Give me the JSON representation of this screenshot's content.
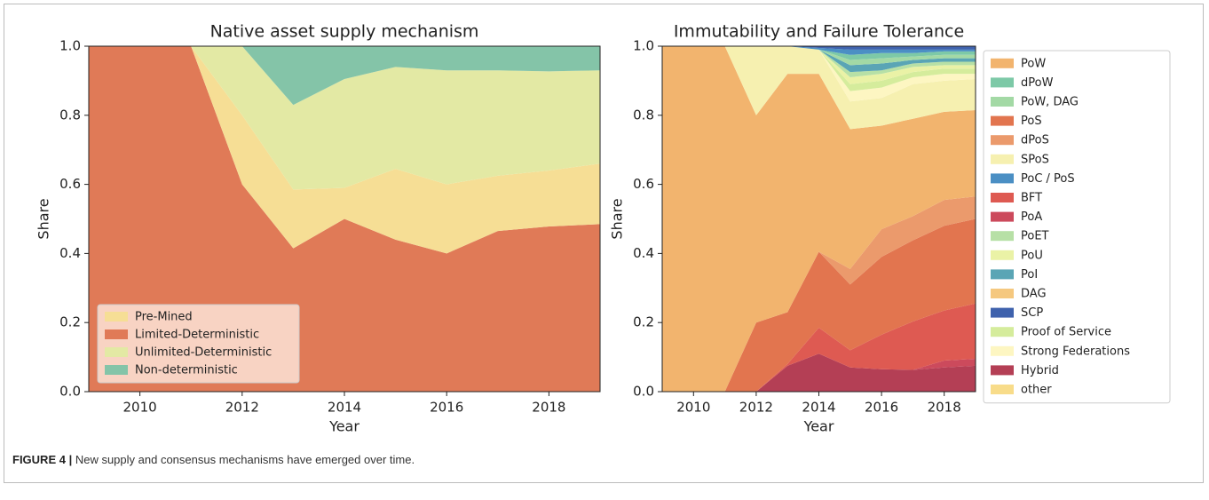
{
  "chart_data": [
    {
      "type": "stacked_area",
      "title": "Native asset supply mechanism",
      "x_label": "Year",
      "y_label": "Share",
      "x": [
        2009,
        2010,
        2011,
        2012,
        2013,
        2014,
        2015,
        2016,
        2017,
        2018,
        2019
      ],
      "xlim": [
        2009,
        2019
      ],
      "xticks": [
        2010,
        2012,
        2014,
        2016,
        2018
      ],
      "ylim": [
        0,
        1
      ],
      "yticks": [
        {
          "value": 0,
          "label": "0.0"
        },
        {
          "value": 0.2,
          "label": "0.2"
        },
        {
          "value": 0.4,
          "label": "0.4"
        },
        {
          "value": 0.6,
          "label": "0.6"
        },
        {
          "value": 0.8,
          "label": "0.8"
        },
        {
          "value": 1,
          "label": "1.0"
        }
      ],
      "legend": "lower left",
      "stack_order": [
        1,
        0,
        2,
        3
      ],
      "series": [
        {
          "name": "Pre-Mined",
          "color": "#f6de95",
          "values": [
            0,
            0,
            0,
            0.2,
            0.17,
            0.09,
            0.205,
            0.2,
            0.16,
            0.162,
            0.175
          ]
        },
        {
          "name": "Limited-Deterministic",
          "color": "#e07a57",
          "values": [
            1,
            1,
            1,
            0.6,
            0.415,
            0.5,
            0.44,
            0.4,
            0.465,
            0.478,
            0.485
          ]
        },
        {
          "name": "Unlimited-Deterministic",
          "color": "#e3e9a4",
          "values": [
            0,
            0,
            0,
            0.2,
            0.245,
            0.315,
            0.295,
            0.33,
            0.305,
            0.287,
            0.27
          ]
        },
        {
          "name": "Non-deterministic",
          "color": "#84c4a8",
          "values": [
            0,
            0,
            0,
            0,
            0.17,
            0.095,
            0.06,
            0.07,
            0.07,
            0.073,
            0.07
          ]
        }
      ]
    },
    {
      "type": "stacked_area",
      "title": "Immutability and Failure Tolerance",
      "x_label": "Year",
      "y_label": "Share",
      "x": [
        2009,
        2010,
        2011,
        2012,
        2013,
        2014,
        2015,
        2016,
        2017,
        2018,
        2019
      ],
      "xlim": [
        2009,
        2019
      ],
      "xticks": [
        2010,
        2012,
        2014,
        2016,
        2018
      ],
      "ylim": [
        0,
        1
      ],
      "yticks": [
        {
          "value": 0,
          "label": "0.0"
        },
        {
          "value": 0.2,
          "label": "0.2"
        },
        {
          "value": 0.4,
          "label": "0.4"
        },
        {
          "value": 0.6,
          "label": "0.6"
        },
        {
          "value": 0.8,
          "label": "0.8"
        },
        {
          "value": 1,
          "label": "1.0"
        }
      ],
      "legend": "outside right",
      "stack_order": [
        16,
        8,
        7,
        3,
        4,
        0,
        12,
        5,
        17,
        15,
        14,
        10,
        9,
        11,
        2,
        1,
        6,
        13
      ],
      "series": [
        {
          "name": "PoW",
          "color": "#f2b46e",
          "values": [
            1,
            1,
            1,
            0.6,
            0.69,
            0.515,
            0.405,
            0.3,
            0.282,
            0.255,
            0.25
          ]
        },
        {
          "name": "dPoW",
          "color": "#7dc9a7",
          "values": [
            0,
            0,
            0,
            0,
            0,
            0,
            0.015,
            0.015,
            0.01,
            0.01,
            0.01
          ]
        },
        {
          "name": "PoW, DAG",
          "color": "#a3d9a5",
          "values": [
            0,
            0,
            0,
            0,
            0,
            0,
            0.015,
            0.015,
            0.01,
            0.01,
            0.01
          ]
        },
        {
          "name": "PoS",
          "color": "#e2754f",
          "values": [
            0,
            0,
            0,
            0.2,
            0.15,
            0.22,
            0.19,
            0.225,
            0.235,
            0.245,
            0.245
          ]
        },
        {
          "name": "dPoS",
          "color": "#eb9a6c",
          "values": [
            0,
            0,
            0,
            0,
            0,
            0,
            0.045,
            0.08,
            0.07,
            0.075,
            0.065
          ]
        },
        {
          "name": "SPoS",
          "color": "#f6f0b0",
          "values": [
            0,
            0,
            0,
            0.2,
            0.08,
            0.07,
            0.08,
            0.08,
            0.1,
            0.09,
            0.09
          ]
        },
        {
          "name": "PoC / PoS",
          "color": "#4b8fc4",
          "values": [
            0,
            0,
            0,
            0,
            0,
            0.005,
            0.015,
            0.01,
            0.01,
            0.005,
            0.005
          ]
        },
        {
          "name": "BFT",
          "color": "#de5a52",
          "values": [
            0,
            0,
            0,
            0,
            0.005,
            0.075,
            0.05,
            0.1,
            0.14,
            0.145,
            0.16
          ]
        },
        {
          "name": "PoA",
          "color": "#cc4a5c",
          "values": [
            0,
            0,
            0,
            0,
            0,
            0,
            0,
            0,
            0,
            0.02,
            0.02
          ]
        },
        {
          "name": "PoET",
          "color": "#b7e0a6",
          "values": [
            0,
            0,
            0,
            0,
            0,
            0,
            0.015,
            0.01,
            0.01,
            0.01,
            0.01
          ]
        },
        {
          "name": "PoU",
          "color": "#eaf2a6",
          "values": [
            0,
            0,
            0,
            0,
            0,
            0,
            0.02,
            0.02,
            0.015,
            0.01,
            0.01
          ]
        },
        {
          "name": "PoI",
          "color": "#5aa5b5",
          "values": [
            0,
            0,
            0,
            0,
            0,
            0,
            0.02,
            0.02,
            0.01,
            0.01,
            0.01
          ]
        },
        {
          "name": "DAG",
          "color": "#f5c87f",
          "values": [
            0,
            0,
            0,
            0,
            0,
            0,
            0,
            0,
            0,
            0,
            0
          ]
        },
        {
          "name": "SCP",
          "color": "#3f62ad",
          "values": [
            0,
            0,
            0,
            0,
            0,
            0.005,
            0.01,
            0.01,
            0.01,
            0.01,
            0.01
          ]
        },
        {
          "name": "Proof of Service",
          "color": "#d5ec9c",
          "values": [
            0,
            0,
            0,
            0,
            0,
            0,
            0.02,
            0.02,
            0.015,
            0.015,
            0.015
          ]
        },
        {
          "name": "Strong Federations",
          "color": "#fdf6c2",
          "values": [
            0,
            0,
            0,
            0,
            0,
            0,
            0.03,
            0.03,
            0.02,
            0.02,
            0.015
          ]
        },
        {
          "name": "Hybrid",
          "color": "#b43f55",
          "values": [
            0,
            0,
            0,
            0,
            0.075,
            0.11,
            0.07,
            0.065,
            0.063,
            0.07,
            0.075
          ]
        },
        {
          "name": "other",
          "color": "#f8dc8a",
          "values": [
            0,
            0,
            0,
            0,
            0,
            0,
            0,
            0,
            0,
            0,
            0
          ]
        }
      ]
    }
  ],
  "caption": {
    "label": "FIGURE 4 |",
    "text": "New supply and consensus mechanisms have emerged over time."
  }
}
